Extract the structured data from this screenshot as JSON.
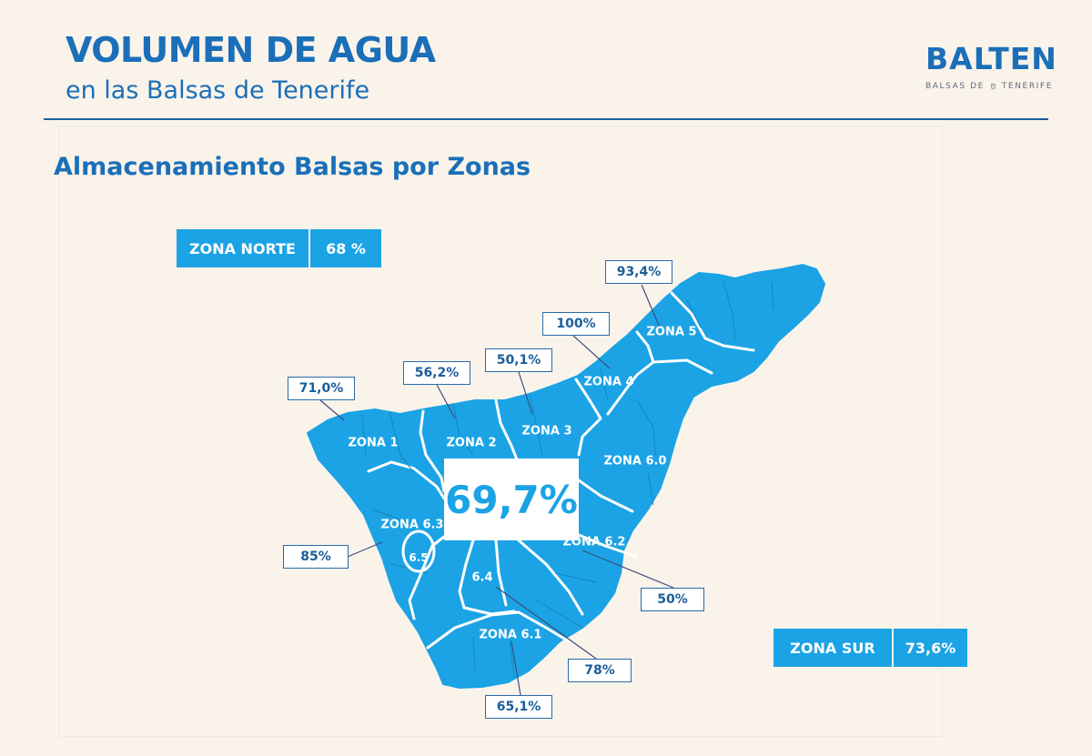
{
  "header": {
    "title": "VOLUMEN DE AGUA",
    "subtitle": "en las Balsas de Tenerife",
    "logo_name": "BALTEN",
    "logo_tag_left": "BALSAS DE",
    "logo_tag_right": "TENERIFE"
  },
  "section_title": "Almacenamiento Balsas por Zonas",
  "summary": {
    "norte": {
      "label": "ZONA NORTE",
      "value": "68 %"
    },
    "sur": {
      "label": "ZONA SUR",
      "value": "73,6%"
    }
  },
  "total": "69,7%",
  "zones": {
    "z1": "ZONA 1",
    "z2": "ZONA 2",
    "z3": "ZONA 3",
    "z4": "ZONA 4",
    "z5": "ZONA 5",
    "z60": "ZONA 6.0",
    "z61": "ZONA 6.1",
    "z62": "ZONA 6.2",
    "z63": "ZONA 6.3",
    "z64": "6.4",
    "z65": "6.5"
  },
  "callouts": {
    "z1": "71,0%",
    "z2": "56,2%",
    "z3": "50,1%",
    "z4": "100%",
    "z5": "93,4%",
    "z63": "85%",
    "z62": "50%",
    "z64": "78%",
    "z61": "65,1%"
  },
  "colors": {
    "island": "#1ba3e5",
    "title": "#1a6fb8",
    "background": "#faf3ea",
    "callout_border": "#2a6aa8"
  }
}
